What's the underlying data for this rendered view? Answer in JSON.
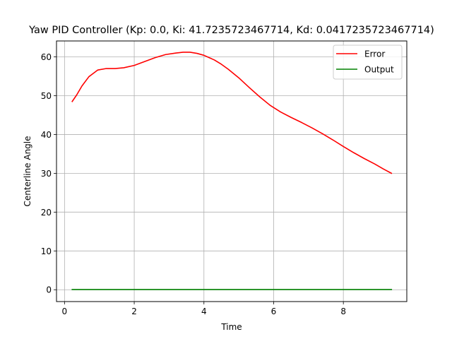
{
  "chart_data": {
    "type": "line",
    "title": "Yaw PID Controller (Kp: 0.0, Ki: 41.7235723467714, Kd: 0.0417235723467714)",
    "xlabel": "Time",
    "ylabel": "Centerline Angle",
    "xlim": [
      -0.23,
      9.82
    ],
    "ylim": [
      -3.05,
      64.1
    ],
    "xticks": [
      0,
      2,
      4,
      6,
      8
    ],
    "yticks": [
      0,
      10,
      20,
      30,
      40,
      50,
      60
    ],
    "grid": true,
    "legend_position": "top-right",
    "series": [
      {
        "name": "Error",
        "color": "#ff0000",
        "x": [
          0.22,
          0.35,
          0.5,
          0.7,
          0.95,
          1.2,
          1.45,
          1.7,
          2.0,
          2.3,
          2.6,
          2.9,
          3.2,
          3.4,
          3.6,
          3.8,
          4.0,
          4.15,
          4.3,
          4.5,
          4.7,
          5.0,
          5.3,
          5.6,
          5.9,
          6.2,
          6.5,
          6.8,
          7.1,
          7.4,
          7.7,
          8.0,
          8.3,
          8.6,
          8.9,
          9.15,
          9.38
        ],
        "values": [
          48.5,
          50.2,
          52.5,
          54.9,
          56.6,
          57.0,
          57.0,
          57.2,
          57.8,
          58.8,
          59.8,
          60.6,
          61.0,
          61.2,
          61.2,
          60.9,
          60.4,
          59.8,
          59.2,
          58.1,
          56.8,
          54.6,
          52.1,
          49.7,
          47.5,
          45.8,
          44.4,
          43.1,
          41.7,
          40.2,
          38.6,
          36.9,
          35.3,
          33.8,
          32.4,
          31.1,
          30.0
        ]
      },
      {
        "name": "Output",
        "color": "#008000",
        "x": [
          0.22,
          9.38
        ],
        "values": [
          0.05,
          0.05
        ]
      }
    ]
  }
}
